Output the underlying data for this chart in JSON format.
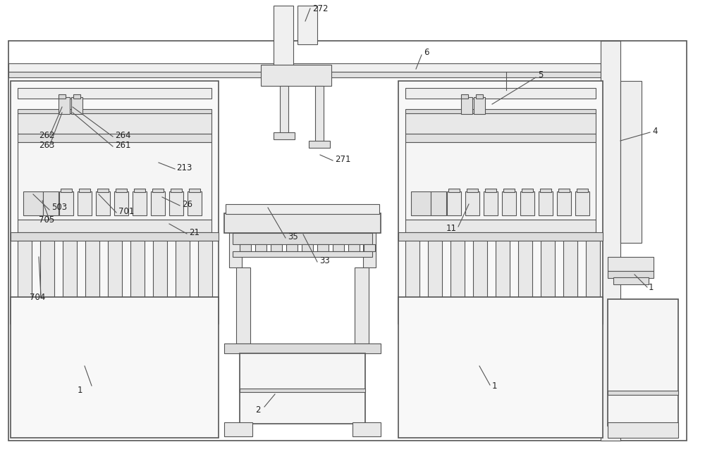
{
  "bg": "#ffffff",
  "lc": "#555555",
  "lc2": "#888888",
  "fc0": "#ffffff",
  "fc1": "#f5f5f5",
  "fc2": "#ebebeb",
  "fc3": "#dcdcdc",
  "fc4": "#cccccc",
  "fc5": "#bbbbbb"
}
